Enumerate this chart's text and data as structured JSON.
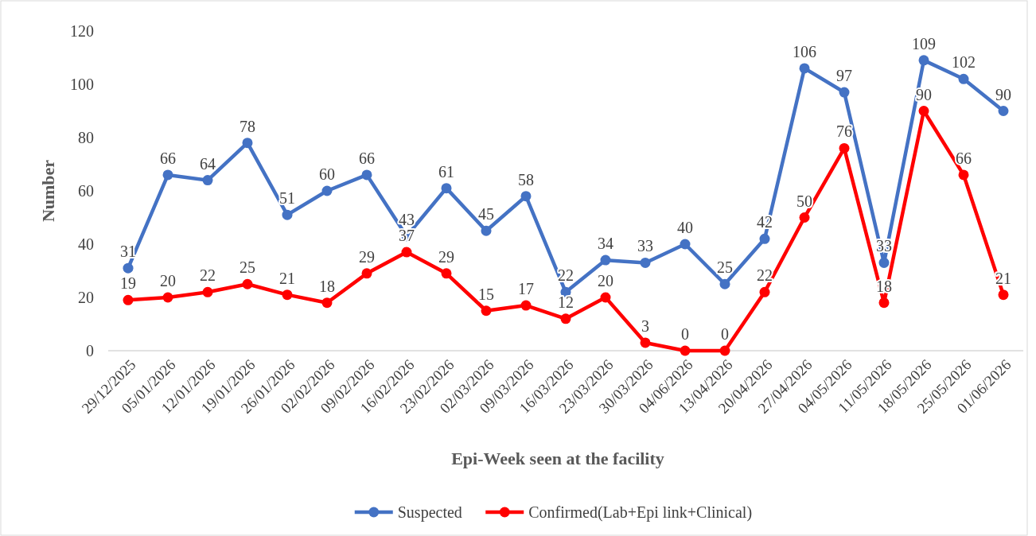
{
  "chart_data": {
    "type": "line",
    "xlabel": "Epi-Week  seen at the facility",
    "ylabel": "Number",
    "categories": [
      "29/12/2025",
      "05/01/2026",
      "12/01/2026",
      "19/01/2026",
      "26/01/2026",
      "02/02/2026",
      "09/02/2026",
      "16/02/2026",
      "23/02/2026",
      "02/03/2026",
      "09/03/2026",
      "16/03/2026",
      "23/03/2026",
      "30/03/2026",
      "04/06/2026",
      "13/04/2026",
      "20/04/2026",
      "27/04/2026",
      "04/05/2026",
      "11/05/2026",
      "18/05/2026",
      "25/05/2026",
      "01/06/2026"
    ],
    "series": [
      {
        "name": "Suspected",
        "color": "#4472c4",
        "values": [
          31,
          66,
          64,
          78,
          51,
          60,
          66,
          43,
          61,
          45,
          58,
          22,
          34,
          33,
          40,
          25,
          42,
          106,
          97,
          33,
          109,
          102,
          90
        ]
      },
      {
        "name": "Confirmed(Lab+Epi link+Clinical)",
        "color": "#ff0000",
        "values": [
          19,
          20,
          22,
          25,
          21,
          18,
          29,
          37,
          29,
          15,
          17,
          12,
          20,
          3,
          0,
          0,
          22,
          50,
          76,
          18,
          90,
          66,
          21
        ]
      }
    ],
    "ylim": [
      0,
      120
    ],
    "yticks": [
      0,
      20,
      40,
      60,
      80,
      100,
      120
    ],
    "grid": false,
    "legend": "bottom",
    "marker": "circle",
    "line_style": "solid",
    "data_labels": true
  }
}
